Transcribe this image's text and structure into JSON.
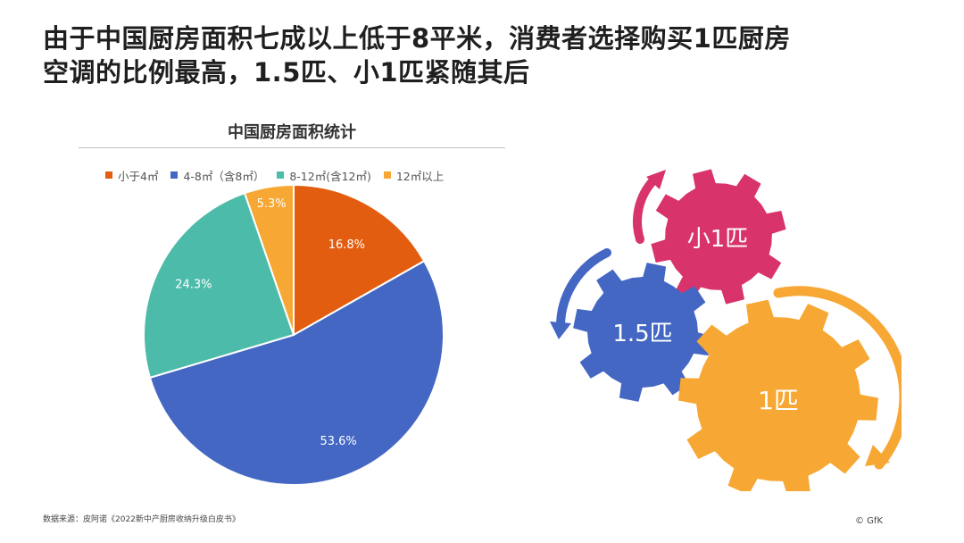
{
  "headline": {
    "line1": "由于中国厨房面积七成以上低于8平米，消费者选择购买1匹厨房",
    "line2": "空调的比例最高，1.5匹、小1匹紧随其后"
  },
  "chart_data": {
    "type": "pie",
    "title": "中国厨房面积统计",
    "categories": [
      "小于4㎡",
      "4-8㎡（含8㎡）",
      "8-12㎡(含12㎡)",
      "12㎡以上"
    ],
    "values": [
      16.8,
      53.6,
      24.3,
      5.3
    ],
    "labels": [
      "16.8%",
      "53.6%",
      "24.3%",
      "5.3%"
    ],
    "colors": [
      "#E35D10",
      "#4467C4",
      "#4DBBAA",
      "#F7A733"
    ],
    "start_angle": "12 o'clock",
    "direction": "clockwise",
    "legend_position": "top"
  },
  "gears": {
    "items": [
      {
        "label": "小1匹",
        "color": "#D8336A"
      },
      {
        "label": "1.5匹",
        "color": "#4467C4"
      },
      {
        "label": "1匹",
        "color": "#F7A733"
      }
    ]
  },
  "footnote": "数据来源：皮阿诺《2022新中产厨房收纳升级白皮书》",
  "copyright": "© GfK"
}
